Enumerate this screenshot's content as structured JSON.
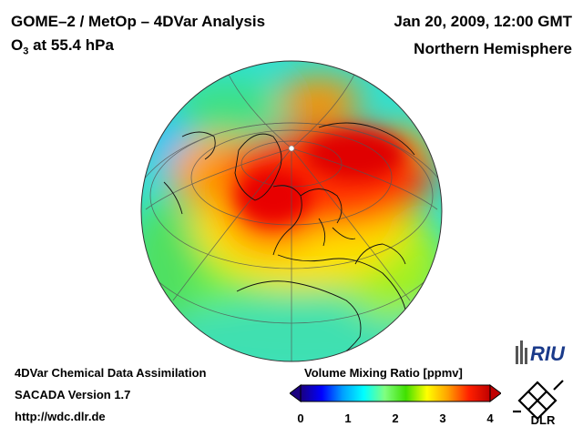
{
  "header": {
    "title": "GOME–2 / MetOp – 4DVar Analysis",
    "subtitle_prefix": "O",
    "subtitle_sub": "3",
    "subtitle_suffix": " at 55.4 hPa",
    "datetime": "Jan 20, 2009, 12:00 GMT",
    "region": "Northern Hemisphere"
  },
  "footer": {
    "line1": "4DVar Chemical Data Assimilation",
    "line2": "SACADA Version 1.7",
    "line3": "http://wdc.dlr.de"
  },
  "colorbar": {
    "title": "Volume Mixing Ratio [ppmv]",
    "ticks": [
      "0",
      "1",
      "2",
      "3",
      "4"
    ],
    "range": [
      0,
      4
    ],
    "colors": [
      "#1a0080",
      "#0000ff",
      "#00a0ff",
      "#00ffff",
      "#80ff80",
      "#40e000",
      "#ffff00",
      "#ffa000",
      "#ff2000",
      "#c00000"
    ]
  },
  "logos": {
    "riu": "RIU",
    "dlr": "DLR"
  },
  "map": {
    "projection": "orthographic",
    "pole_marker": "north-pole",
    "colors": {
      "low_blue": "#00c8ff",
      "green": "#60e000",
      "yellow": "#ffe000",
      "red": "#ff2000",
      "dark_red": "#e00000"
    }
  }
}
